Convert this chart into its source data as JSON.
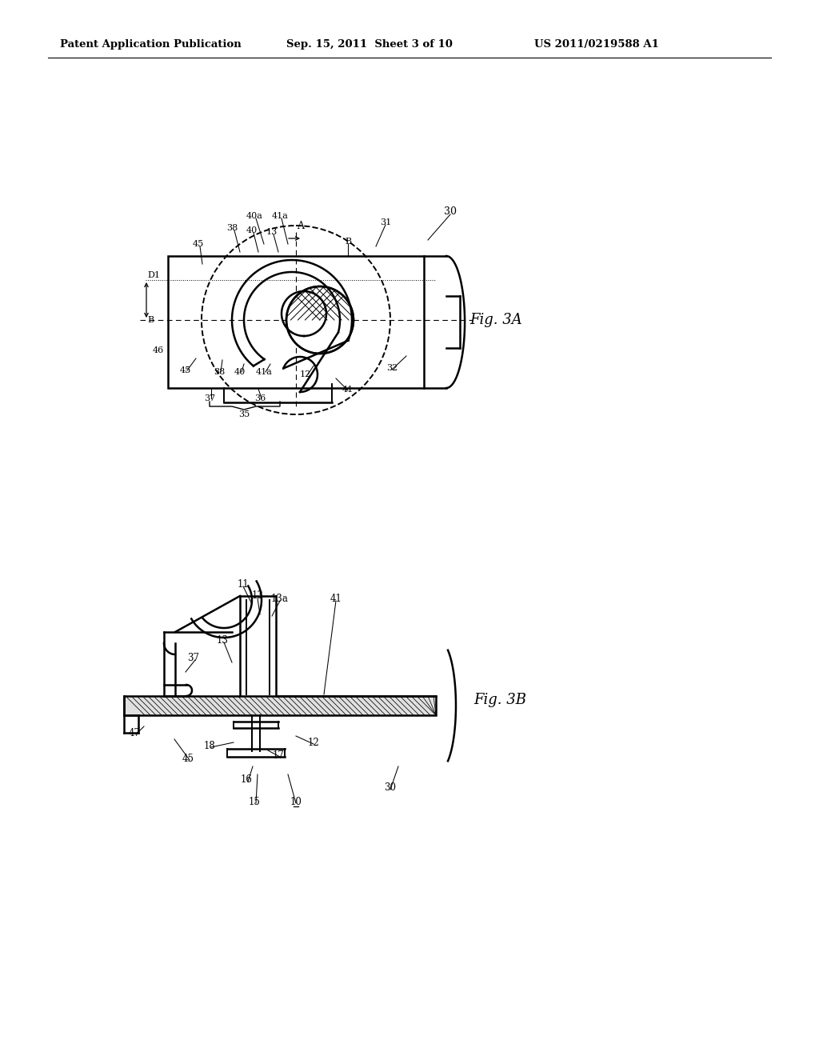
{
  "background_color": "#ffffff",
  "header_left": "Patent Application Publication",
  "header_center": "Sep. 15, 2011  Sheet 3 of 10",
  "header_right": "US 2011/0219588 A1",
  "fig3a_label": "Fig. 3A",
  "fig3b_label": "Fig. 3B",
  "line_color": "#000000"
}
